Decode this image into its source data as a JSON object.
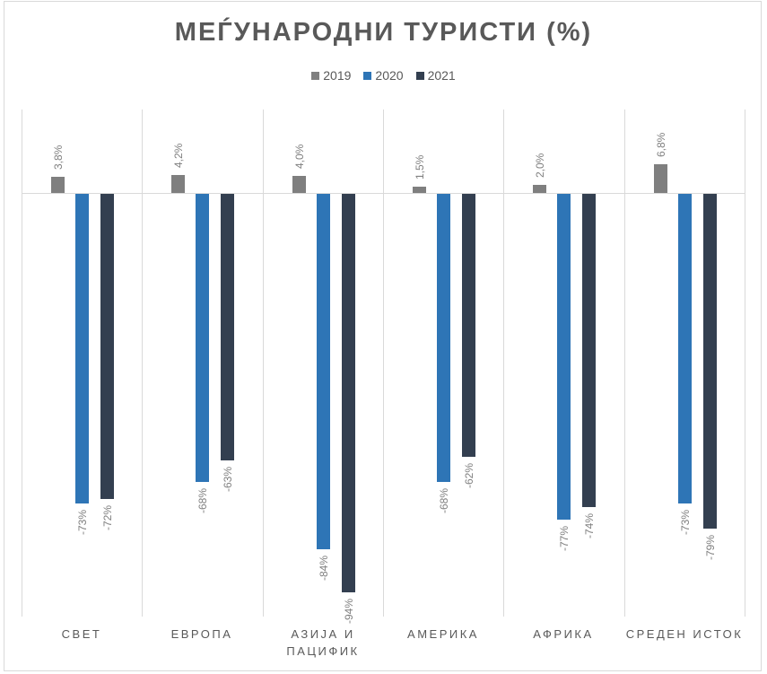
{
  "chart_data": {
    "type": "bar",
    "title": "МЕЃУНАРОДНИ ТУРИСТИ (%)",
    "xlabel": "",
    "ylabel": "",
    "ylim": [
      -100,
      20
    ],
    "grid": "vertical category separators",
    "legend_position": "top",
    "categories": [
      "СВЕТ",
      "ЕВРОПА",
      "АЗИЈА И ПАЦИФИК",
      "АМЕРИКА",
      "АФРИКА",
      "СРЕДЕН ИСТОК"
    ],
    "series": [
      {
        "name": "2019",
        "color": "#7f7f7f",
        "values": [
          3.8,
          4.2,
          4.0,
          1.5,
          2.0,
          6.8
        ],
        "labels": [
          "3,8%",
          "4,2%",
          "4,0%",
          "1,5%",
          "2,0%",
          "6,8%"
        ]
      },
      {
        "name": "2020",
        "color": "#2e75b6",
        "values": [
          -73,
          -68,
          -84,
          -68,
          -77,
          -73
        ],
        "labels": [
          "-73%",
          "-68%",
          "-84%",
          "-68%",
          "-77%",
          "-73%"
        ]
      },
      {
        "name": "2021",
        "color": "#333f50",
        "values": [
          -72,
          -63,
          -94,
          -62,
          -74,
          -79
        ],
        "labels": [
          "-72%",
          "-63%",
          "-94%",
          "-62%",
          "-74%",
          "-79%"
        ]
      }
    ]
  },
  "categories_display": [
    [
      "СВЕТ"
    ],
    [
      "ЕВРОПА"
    ],
    [
      "АЗИЈА И",
      "ПАЦИФИК"
    ],
    [
      "АМЕРИКА"
    ],
    [
      "АФРИКА"
    ],
    [
      "СРЕДЕН ИСТОК"
    ]
  ]
}
